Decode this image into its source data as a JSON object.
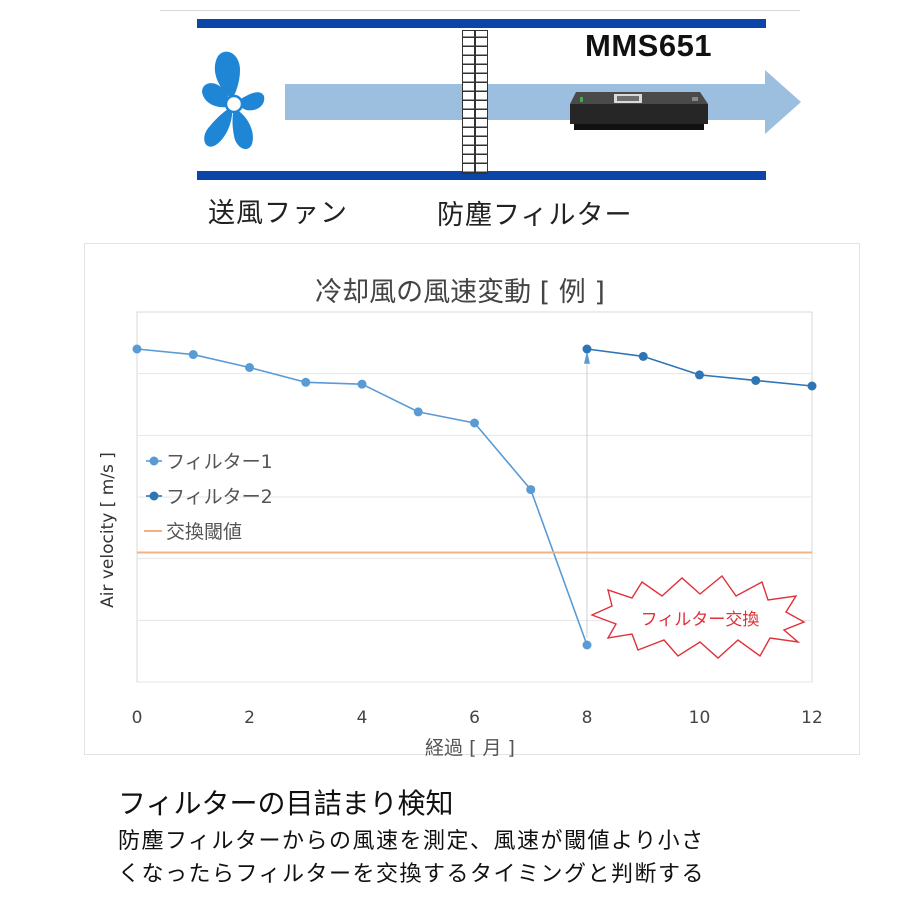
{
  "diagram": {
    "fan_label": "送風ファン",
    "filter_label": "防塵フィルター",
    "device_label": "MMS651",
    "colors": {
      "duct": "#0b45a7",
      "airflow": "#9cbfe0",
      "fan": "#1f86d6"
    },
    "icons": [
      "fan-icon",
      "brick-filter-icon",
      "sensor-device-icon",
      "airflow-arrow-icon"
    ]
  },
  "chart": {
    "title": "冷却風の風速変動 [ 例 ]",
    "xlabel": "経過 [ 月 ]",
    "ylabel": "Air velocity [ m/s ]",
    "x_ticks": [
      "0",
      "2",
      "4",
      "6",
      "8",
      "10",
      "12"
    ],
    "callout": "フィルター交換",
    "legend": [
      {
        "name": "フィルター1"
      },
      {
        "name": "フィルター2"
      },
      {
        "name": "交換閾値"
      }
    ]
  },
  "chart_data": {
    "type": "line",
    "title": "冷却風の風速変動 [ 例 ]",
    "xlabel": "経過 [ 月 ]",
    "ylabel": "Air velocity [ m/s ]",
    "xlim": [
      0,
      12
    ],
    "ylim": [
      0,
      10
    ],
    "y_ticks_labeled": false,
    "grid": "horizontal",
    "legend_position": "left-middle",
    "series": [
      {
        "name": "フィルター1",
        "color": "#5b9bd5",
        "x": [
          0,
          1,
          2,
          3,
          4,
          5,
          6,
          7,
          8
        ],
        "y": [
          9.0,
          8.85,
          8.5,
          8.1,
          8.05,
          7.3,
          7.0,
          5.2,
          1.0
        ]
      },
      {
        "name": "フィルター2",
        "color": "#2e75b6",
        "x": [
          8,
          9,
          10,
          11,
          12
        ],
        "y": [
          9.0,
          8.8,
          8.3,
          8.15,
          8.0
        ]
      },
      {
        "name": "交換閾値",
        "color": "#f4b183",
        "x": [
          0,
          12
        ],
        "y": [
          3.5,
          3.5
        ]
      }
    ]
  },
  "caption": {
    "title": "フィルターの目詰まり検知",
    "line1": "防塵フィルターからの風速を測定、風速が閾値より小さ",
    "line2": "くなったらフィルターを交換するタイミングと判断する"
  }
}
